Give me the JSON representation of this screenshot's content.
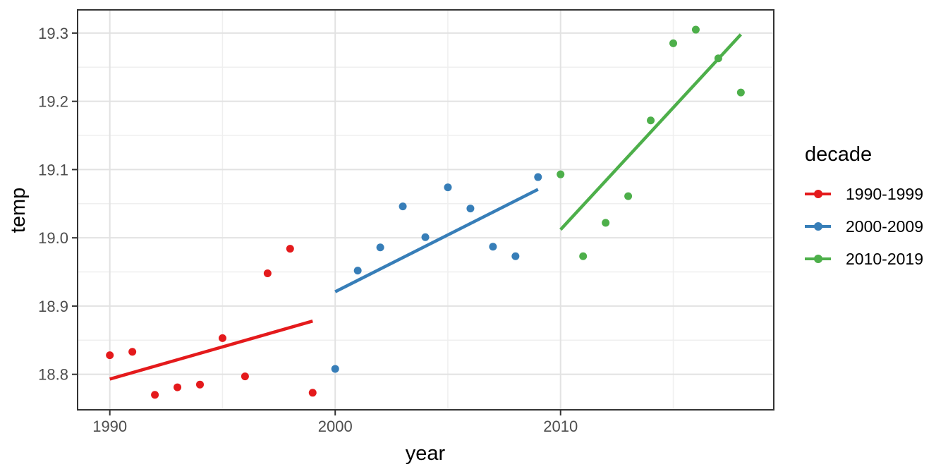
{
  "chart_data": {
    "type": "scatter",
    "title": "",
    "xlabel": "year",
    "ylabel": "temp",
    "xlim": [
      1988.57,
      2019.46
    ],
    "ylim": [
      18.748,
      19.334
    ],
    "x_ticks": [
      1990,
      2000,
      2010
    ],
    "x_tick_labels": [
      "1990",
      "2000",
      "2010"
    ],
    "x_minor_ticks": [
      1995,
      2005,
      2015
    ],
    "y_ticks": [
      18.8,
      18.9,
      19.0,
      19.1,
      19.2,
      19.3
    ],
    "y_tick_labels": [
      "18.8",
      "18.9",
      "19.0",
      "19.1",
      "19.2",
      "19.3"
    ],
    "y_minor_ticks": [
      18.75,
      18.85,
      18.95,
      19.05,
      19.15,
      19.25
    ],
    "grid": true,
    "legend_title": "decade",
    "legend_position": "right",
    "series": [
      {
        "name": "1990-1999",
        "color": "#E41A1C",
        "x": [
          1990,
          1991,
          1992,
          1993,
          1994,
          1995,
          1996,
          1997,
          1998,
          1999
        ],
        "y": [
          18.828,
          18.833,
          18.77,
          18.781,
          18.785,
          18.853,
          18.797,
          18.948,
          18.984,
          18.773
        ],
        "trend": {
          "x1": 1990,
          "y1": 18.793,
          "x2": 1999,
          "y2": 18.878
        }
      },
      {
        "name": "2000-2009",
        "color": "#377EB8",
        "x": [
          2000,
          2001,
          2002,
          2003,
          2004,
          2005,
          2006,
          2007,
          2008,
          2009
        ],
        "y": [
          18.808,
          18.952,
          18.986,
          19.046,
          19.001,
          19.074,
          19.043,
          18.987,
          18.973,
          19.089
        ],
        "trend": {
          "x1": 2000,
          "y1": 18.921,
          "x2": 2009,
          "y2": 19.071
        }
      },
      {
        "name": "2010-2019",
        "color": "#4DAF4A",
        "x": [
          2010,
          2011,
          2012,
          2013,
          2014,
          2015,
          2016,
          2017,
          2018
        ],
        "y": [
          19.093,
          18.973,
          19.022,
          19.061,
          19.172,
          19.285,
          19.305,
          19.263,
          19.213
        ],
        "trend": {
          "x1": 2010,
          "y1": 19.012,
          "x2": 2018,
          "y2": 19.298
        }
      }
    ]
  },
  "style_colors": {
    "panel_border": "#333333",
    "grid_major": "#E2E2E2",
    "grid_minor": "#EFEFEF",
    "tick_mark": "#333333",
    "tick_label": "#4D4D4D",
    "axis_title": "#000000"
  }
}
